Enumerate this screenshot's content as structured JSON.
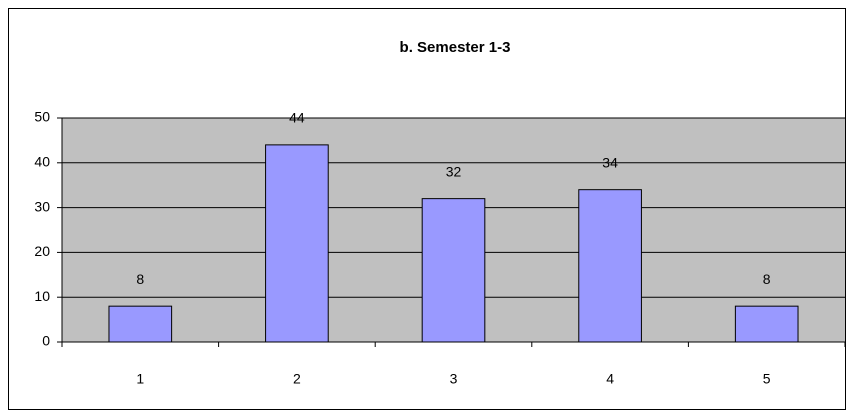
{
  "chart_data": {
    "type": "bar",
    "title": "b. Semester 1-3",
    "categories": [
      "1",
      "2",
      "3",
      "4",
      "5"
    ],
    "values": [
      8,
      44,
      32,
      34,
      8
    ],
    "color": "#9999ff",
    "ylim": [
      0,
      50
    ],
    "yticks": [
      0,
      10,
      20,
      30,
      40,
      50
    ],
    "grid": true
  }
}
